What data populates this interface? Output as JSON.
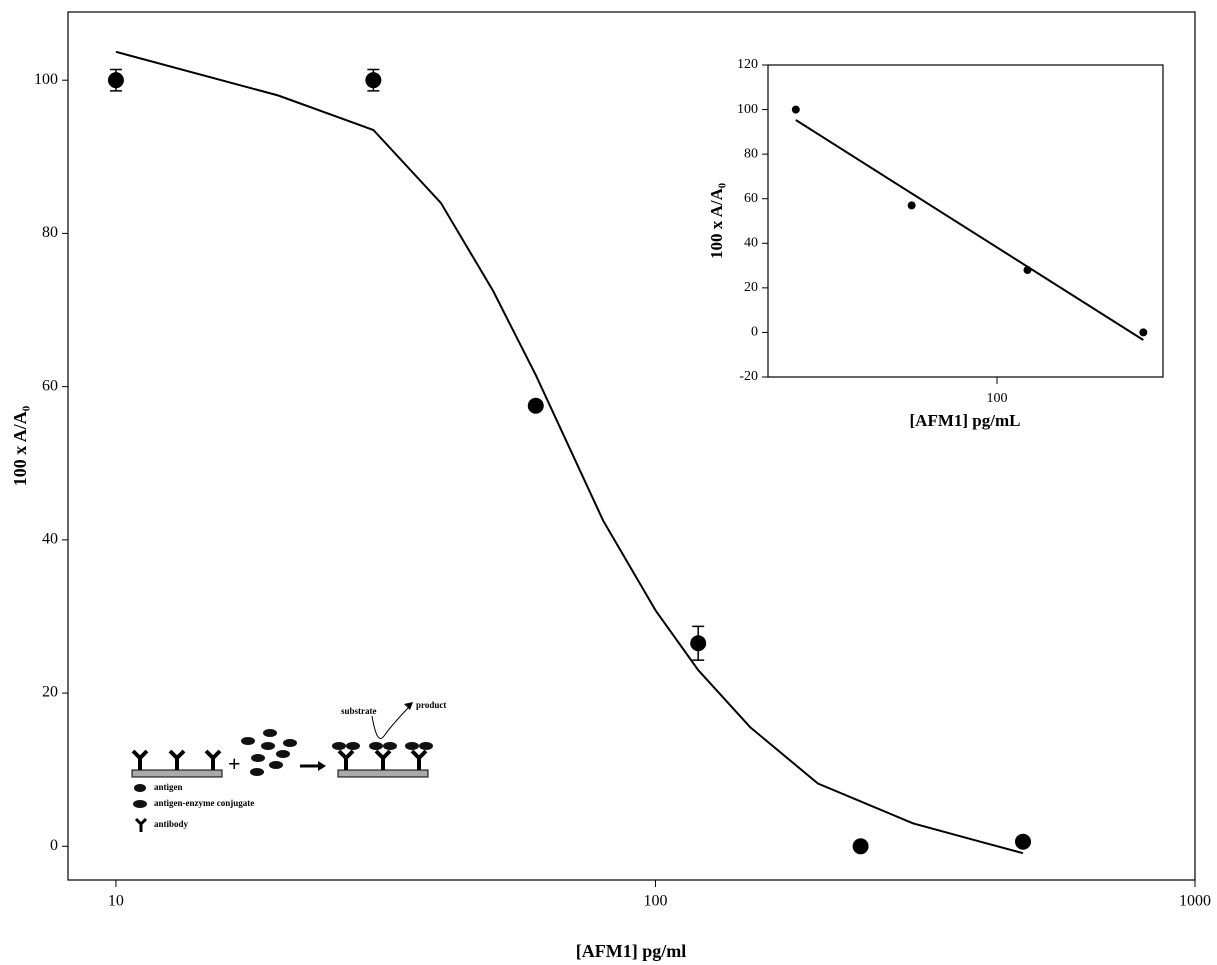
{
  "chart_data": [
    {
      "type": "scatter",
      "xlog": true,
      "x_label": "[AFM1] pg/ml",
      "y_label": "100 x A/A₀",
      "xlim": [
        8.15,
        1000
      ],
      "ylim": [
        -4.4,
        108.9
      ],
      "xticks": [
        10,
        100,
        1000
      ],
      "yticks": [
        0,
        20,
        40,
        60,
        80,
        100
      ],
      "series": [
        {
          "type": "scatter",
          "color": "#000000",
          "x": [
            10,
            30,
            60,
            120,
            240,
            480
          ],
          "values": [
            100,
            100,
            57.5,
            26.5,
            0,
            0.6
          ],
          "errors": [
            1.4,
            1.4,
            0.5,
            2.2,
            0.4,
            0.5
          ]
        },
        {
          "type": "line",
          "color": "#000000",
          "x": [
            10,
            20,
            30,
            40,
            50,
            60,
            80,
            100,
            120,
            150,
            200,
            300,
            400,
            480
          ],
          "values": [
            103.7,
            98,
            93.5,
            84,
            72.5,
            61.5,
            42.5,
            30.8,
            23,
            15.5,
            8.2,
            3,
            0.6,
            -0.9
          ]
        }
      ]
    },
    {
      "type": "scatter",
      "xlog": true,
      "x_label": "[AFM1] pg/mL",
      "y_label": "100 x A/A₀",
      "xlim": [
        25.4,
        270
      ],
      "ylim": [
        -20,
        120
      ],
      "xticks": [
        100
      ],
      "yticks": [
        -20,
        0,
        20,
        40,
        60,
        80,
        100,
        120
      ],
      "series": [
        {
          "type": "scatter",
          "color": "#000000",
          "x": [
            30,
            60,
            120,
            240
          ],
          "values": [
            100,
            57,
            28,
            0
          ]
        },
        {
          "type": "line",
          "color": "#000000",
          "x": [
            30,
            240
          ],
          "values": [
            95.3,
            -3.4
          ]
        }
      ]
    }
  ],
  "diagram": {
    "substrate": "substrate",
    "product": "product",
    "legend": [
      "antigen",
      "antigen-enzyme conjugate",
      "antibody"
    ]
  }
}
